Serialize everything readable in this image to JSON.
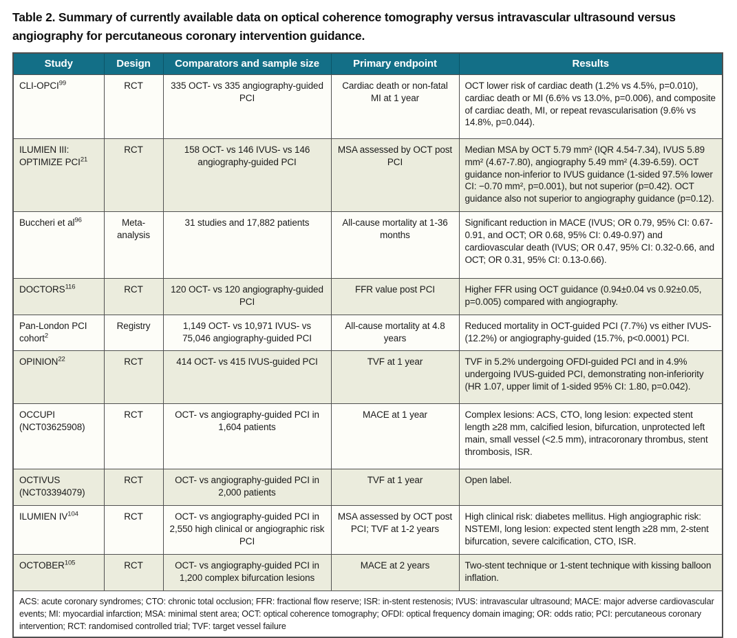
{
  "title": "Table 2. Summary of currently available data on optical coherence tomography versus intravascular ultrasound versus angiography for percutaneous coronary intervention guidance.",
  "table": {
    "columns": [
      "Study",
      "Design",
      "Comparators and sample size",
      "Primary endpoint",
      "Results"
    ],
    "rows": [
      {
        "study": "CLI-OPCI",
        "sup": "99",
        "design": "RCT",
        "comparators": "335 OCT- vs 335 angiography-guided PCI",
        "endpoint": "Cardiac death or non-fatal MI at 1 year",
        "results": "OCT lower risk of cardiac death (1.2% vs 4.5%, p=0.010), cardiac death or MI (6.6% vs 13.0%, p=0.006), and composite of cardiac death, MI, or repeat revascularisation (9.6% vs 14.8%, p=0.044)."
      },
      {
        "study": "ILUMIEN III: OPTIMIZE PCI",
        "sup": "21",
        "design": "RCT",
        "comparators": "158 OCT- vs 146 IVUS- vs 146 angiography-guided PCI",
        "endpoint": "MSA assessed by OCT post PCI",
        "results": "Median MSA by OCT 5.79 mm² (IQR 4.54-7.34), IVUS 5.89 mm² (4.67-7.80), angiography 5.49 mm² (4.39-6.59). OCT guidance non-inferior to IVUS guidance (1-sided 97.5% lower CI: −0.70 mm², p=0.001), but not superior (p=0.42). OCT guidance also not superior to angiography guidance (p=0.12)."
      },
      {
        "study": "Buccheri et al",
        "sup": "96",
        "design": "Meta-analysis",
        "comparators": "31 studies and 17,882 patients",
        "endpoint": "All-cause mortality at 1-36 months",
        "results": "Significant reduction in MACE (IVUS; OR 0.79, 95% CI: 0.67-0.91, and OCT; OR 0.68, 95% CI: 0.49-0.97) and cardiovascular death (IVUS; OR 0.47, 95% CI: 0.32-0.66, and OCT; OR 0.31, 95% CI: 0.13-0.66)."
      },
      {
        "study": "DOCTORS",
        "sup": "116",
        "design": "RCT",
        "comparators": "120 OCT- vs 120 angiography-guided PCI",
        "endpoint": "FFR value post PCI",
        "results": "Higher FFR using OCT guidance (0.94±0.04 vs 0.92±0.05, p=0.005) compared with angiography."
      },
      {
        "study": "Pan-London PCI cohort",
        "sup": "2",
        "design": "Registry",
        "comparators": "1,149 OCT- vs 10,971 IVUS- vs 75,046 angiography-guided PCI",
        "endpoint": "All-cause mortality at 4.8 years",
        "results": "Reduced mortality in OCT-guided PCI (7.7%) vs either IVUS- (12.2%) or angiography-guided (15.7%, p<0.0001) PCI."
      },
      {
        "study": "OPINION",
        "sup": "22",
        "design": "RCT",
        "comparators": "414 OCT- vs 415 IVUS-guided PCI",
        "endpoint": "TVF at 1 year",
        "results": "TVF in 5.2% undergoing OFDI-guided PCI and in 4.9% undergoing IVUS-guided PCI, demonstrating non-inferiority (HR 1.07, upper limit of 1-sided 95% CI: 1.80, p=0.042)."
      },
      {
        "study": "OCCUPI (NCT03625908)",
        "sup": "",
        "design": "RCT",
        "comparators": "OCT- vs angiography-guided PCI in 1,604 patients",
        "endpoint": "MACE at 1 year",
        "results": "Complex lesions: ACS, CTO, long lesion: expected stent length ≥28 mm, calcified lesion, bifurcation, unprotected left main, small vessel (<2.5 mm), intracoronary thrombus, stent thrombosis, ISR."
      },
      {
        "study": "OCTIVUS (NCT03394079)",
        "sup": "",
        "design": "RCT",
        "comparators": "OCT- vs angiography-guided PCI in 2,000 patients",
        "endpoint": "TVF at 1 year",
        "results": "Open label."
      },
      {
        "study": "ILUMIEN IV",
        "sup": "104",
        "design": "RCT",
        "comparators": "OCT- vs angiography-guided PCI in 2,550 high clinical or angiographic risk PCI",
        "endpoint": "MSA assessed by OCT post PCI; TVF at 1-2 years",
        "results": "High clinical risk: diabetes mellitus. High angiographic risk: NSTEMI, long lesion: expected stent length ≥28 mm, 2-stent bifurcation, severe calcification, CTO, ISR."
      },
      {
        "study": "OCTOBER",
        "sup": "105",
        "design": "RCT",
        "comparators": "OCT- vs angiography-guided PCI in 1,200 complex bifurcation lesions",
        "endpoint": "MACE at 2 years",
        "results": "Two-stent technique or 1-stent technique with kissing balloon inflation."
      }
    ],
    "footnote": "ACS: acute coronary syndromes; CTO: chronic total occlusion; FFR: fractional flow reserve; ISR: in-stent restenosis; IVUS: intravascular ultrasound; MACE: major adverse cardiovascular events; MI: myocardial infarction; MSA: minimal stent area; OCT: optical coherence tomography; OFDI: optical frequency domain imaging; OR: odds ratio; PCI: percutaneous coronary intervention; RCT: randomised controlled trial; TVF: target vessel failure"
  },
  "colors": {
    "header_bg": "#136f87",
    "header_text": "#ffffff",
    "stripe_bg": "#ebecdd",
    "row_bg": "#fdfdf8",
    "border": "#4f4f4f"
  }
}
